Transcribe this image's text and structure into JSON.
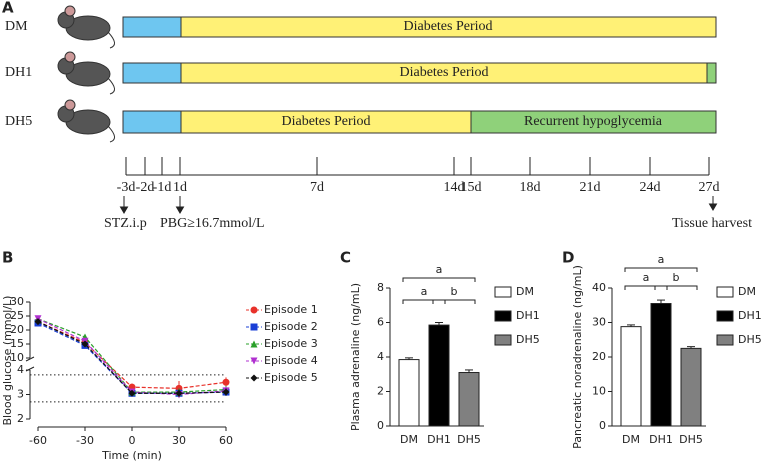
{
  "panel_a": {
    "label": "A",
    "rows": [
      {
        "name": "DM",
        "phases": [
          "Diabetes Period"
        ]
      },
      {
        "name": "DH1",
        "phases": [
          "Diabetes Period"
        ]
      },
      {
        "name": "DH5",
        "phases": [
          "Diabetes Period",
          "Recurrent hypoglycemia"
        ]
      }
    ],
    "timeline": [
      "-3d",
      "-2d",
      "-1d",
      "1d",
      "7d",
      "14d",
      "15d",
      "18d",
      "21d",
      "24d",
      "27d"
    ],
    "annotations": [
      "STZ.i.p",
      "PBG≥16.7mmol/L",
      "Tissue harvest"
    ]
  },
  "chart_data": [
    {
      "type": "line",
      "label": "B",
      "xlabel": "Time (min)",
      "ylabel": "Blood glucose (mmol/L)",
      "x": [
        -60,
        -30,
        0,
        30,
        60
      ],
      "xlim": [
        -60,
        60
      ],
      "xticks": [
        -60,
        -30,
        0,
        30,
        60
      ],
      "ylim": [
        2,
        30
      ],
      "ybreak": [
        4,
        10
      ],
      "yticks": [
        2,
        3,
        4,
        10,
        15,
        20,
        25,
        30
      ],
      "ref_lines": [
        3.8,
        2.7
      ],
      "series": [
        {
          "name": "Episode 1",
          "color": "#e8312a",
          "marker": "circle",
          "values": [
            23,
            15.5,
            3.3,
            3.25,
            3.5
          ],
          "errors": [
            1,
            1,
            0.15,
            0.3,
            0.2
          ]
        },
        {
          "name": "Episode 2",
          "color": "#1a3fd6",
          "marker": "square",
          "values": [
            22.5,
            14.5,
            3.05,
            3.05,
            3.1
          ],
          "errors": [
            1,
            1,
            0.1,
            0.15,
            0.15
          ]
        },
        {
          "name": "Episode 3",
          "color": "#2aa02a",
          "marker": "triangle-up",
          "values": [
            24,
            17.5,
            3.1,
            3.1,
            3.2
          ],
          "errors": [
            1,
            1,
            0.1,
            0.15,
            0.15
          ]
        },
        {
          "name": "Episode 4",
          "color": "#b030d0",
          "marker": "triangle-down",
          "values": [
            24,
            16,
            3.1,
            3,
            3.15
          ],
          "errors": [
            1,
            1,
            0.1,
            0.15,
            0.15
          ]
        },
        {
          "name": "Episode 5",
          "color": "#111111",
          "marker": "diamond",
          "values": [
            23,
            15,
            3.05,
            3.05,
            3.1
          ],
          "errors": [
            1,
            1,
            0.1,
            0.15,
            0.15
          ]
        }
      ]
    },
    {
      "type": "bar",
      "label": "C",
      "ylabel": "Plasma adrenaline (ng/mL)",
      "categories": [
        "DM",
        "DH1",
        "DH5"
      ],
      "values": [
        3.85,
        5.85,
        3.1
      ],
      "errors": [
        0.1,
        0.15,
        0.15
      ],
      "colors": [
        "#ffffff",
        "#000000",
        "#808080"
      ],
      "ylim": [
        0,
        8
      ],
      "yticks": [
        0,
        2,
        4,
        6,
        8
      ],
      "annotations": [
        "a",
        "a",
        "b"
      ]
    },
    {
      "type": "bar",
      "label": "D",
      "ylabel": "Pancreatic noradrenaline (ng/mL)",
      "categories": [
        "DM",
        "DH1",
        "DH5"
      ],
      "values": [
        28.8,
        35.5,
        22.5
      ],
      "errors": [
        0.5,
        1,
        0.5
      ],
      "colors": [
        "#ffffff",
        "#000000",
        "#808080"
      ],
      "ylim": [
        0,
        40
      ],
      "yticks": [
        0,
        10,
        20,
        30,
        40
      ],
      "annotations": [
        "a",
        "a",
        "b"
      ]
    }
  ]
}
